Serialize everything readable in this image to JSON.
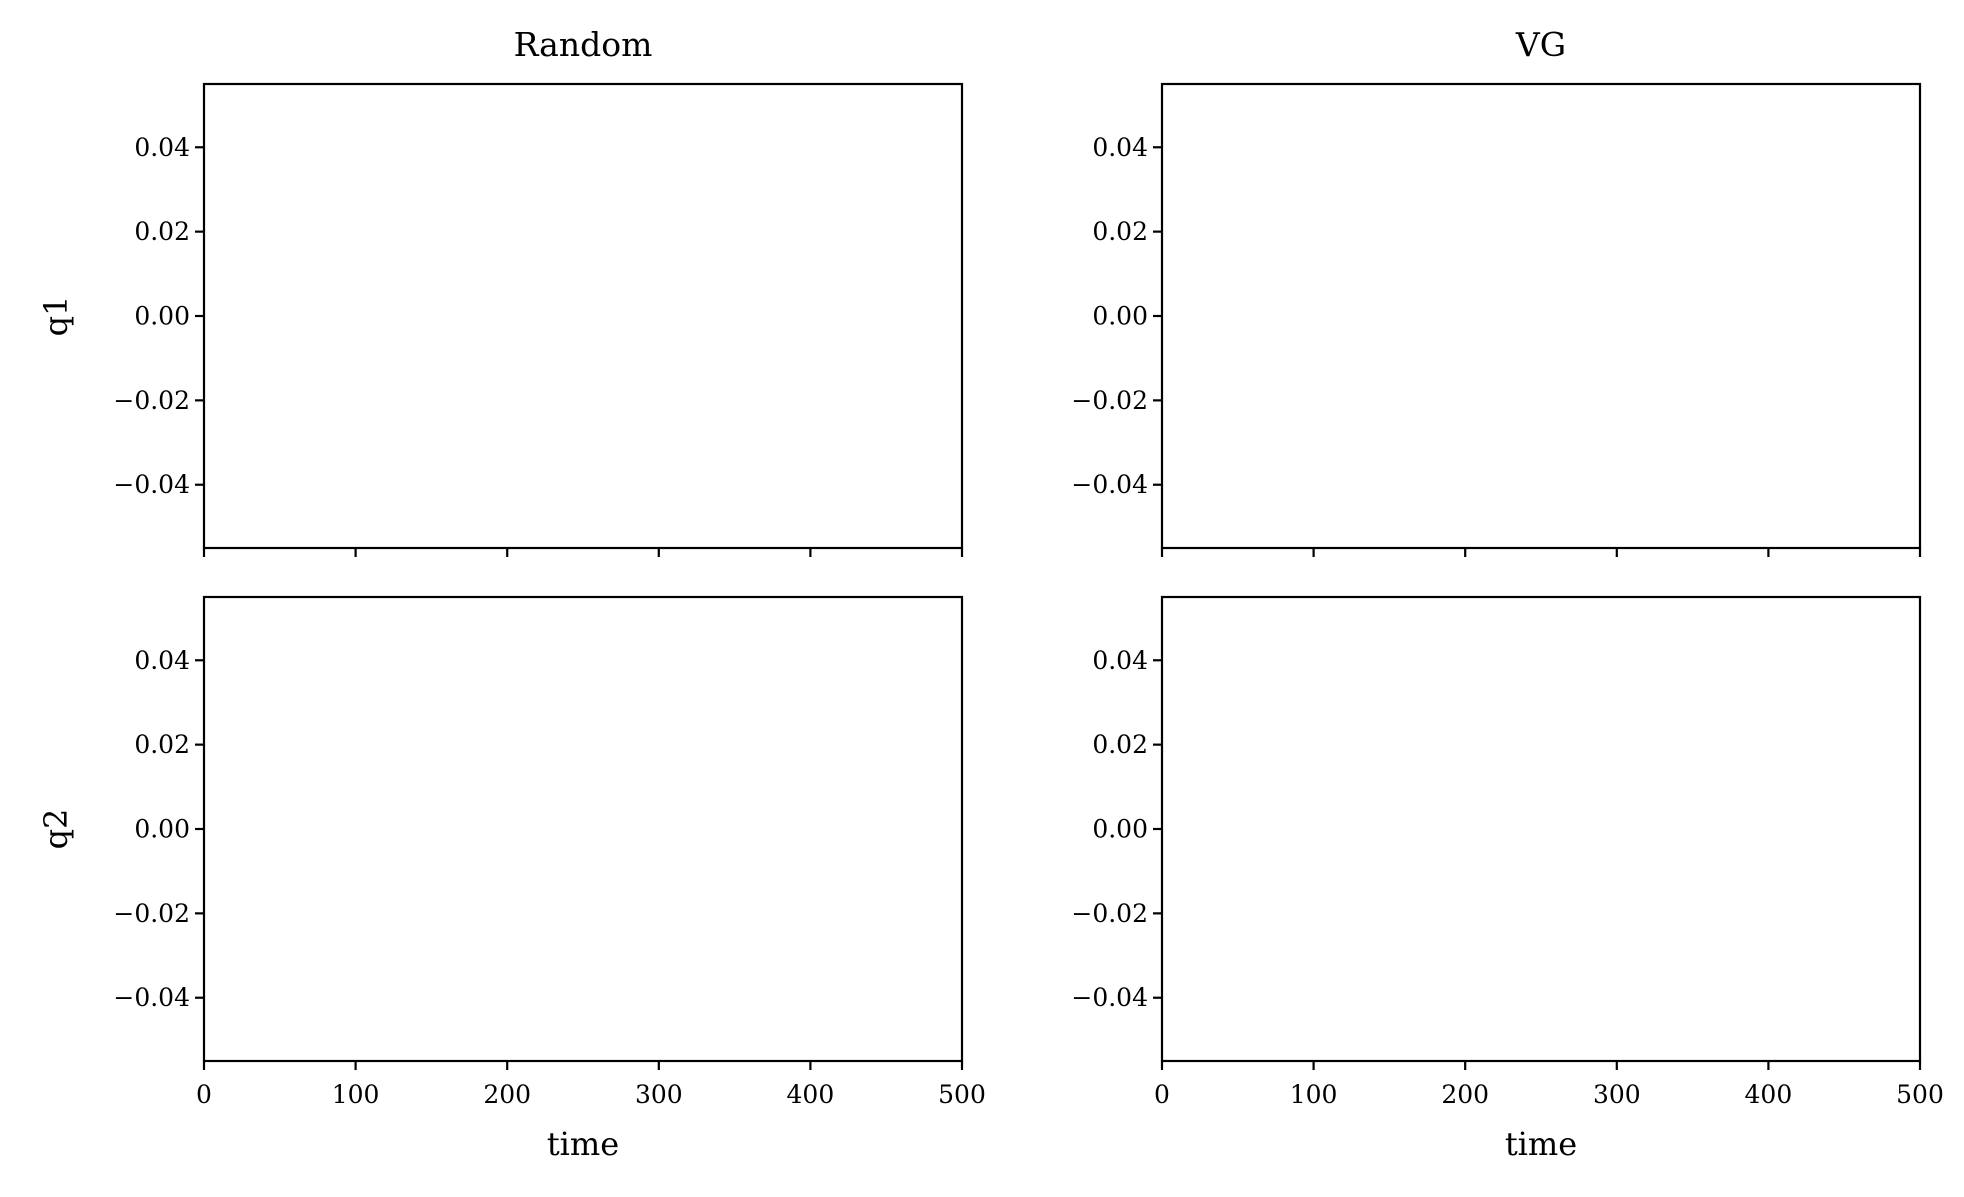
{
  "chart_data": [
    {
      "type": "line",
      "column_title": "Random",
      "row": "q1",
      "ylabel": "q1",
      "xlabel": "",
      "xlim": [
        0,
        500
      ],
      "ylim": [
        -0.055,
        0.055
      ],
      "x_ticks": [
        0,
        100,
        200,
        300,
        400,
        500
      ],
      "x_tick_labels_visible": false,
      "y_ticks": [
        0.04,
        0.02,
        0.0,
        -0.02,
        -0.04
      ],
      "y_tick_labels": [
        "0.04",
        "0.02",
        "0.00",
        "−0.02",
        "−0.04"
      ],
      "series": [],
      "grid": false
    },
    {
      "type": "line",
      "column_title": "VG",
      "row": "q1",
      "ylabel": "",
      "xlabel": "",
      "xlim": [
        0,
        500
      ],
      "ylim": [
        -0.055,
        0.055
      ],
      "x_ticks": [
        0,
        100,
        200,
        300,
        400,
        500
      ],
      "x_tick_labels_visible": false,
      "y_ticks": [
        0.04,
        0.02,
        0.0,
        -0.02,
        -0.04
      ],
      "y_tick_labels": [
        "0.04",
        "0.02",
        "0.00",
        "−0.02",
        "−0.04"
      ],
      "series": [],
      "grid": false
    },
    {
      "type": "line",
      "column_title": "",
      "row": "q2",
      "ylabel": "q2",
      "xlabel": "time",
      "xlim": [
        0,
        500
      ],
      "ylim": [
        -0.055,
        0.055
      ],
      "x_ticks": [
        0,
        100,
        200,
        300,
        400,
        500
      ],
      "x_tick_labels": [
        "0",
        "100",
        "200",
        "300",
        "400",
        "500"
      ],
      "x_tick_labels_visible": true,
      "y_ticks": [
        0.04,
        0.02,
        0.0,
        -0.02,
        -0.04
      ],
      "y_tick_labels": [
        "0.04",
        "0.02",
        "0.00",
        "−0.02",
        "−0.04"
      ],
      "series": [],
      "grid": false
    },
    {
      "type": "line",
      "column_title": "",
      "row": "q2",
      "ylabel": "",
      "xlabel": "time",
      "xlim": [
        0,
        500
      ],
      "ylim": [
        -0.055,
        0.055
      ],
      "x_ticks": [
        0,
        100,
        200,
        300,
        400,
        500
      ],
      "x_tick_labels": [
        "0",
        "100",
        "200",
        "300",
        "400",
        "500"
      ],
      "x_tick_labels_visible": true,
      "y_ticks": [
        0.04,
        0.02,
        0.0,
        -0.02,
        -0.04
      ],
      "y_tick_labels": [
        "0.04",
        "0.02",
        "0.00",
        "−0.02",
        "−0.04"
      ],
      "series": [],
      "grid": false
    }
  ],
  "colors": {
    "axes": "#000000",
    "background": "#ffffff"
  }
}
